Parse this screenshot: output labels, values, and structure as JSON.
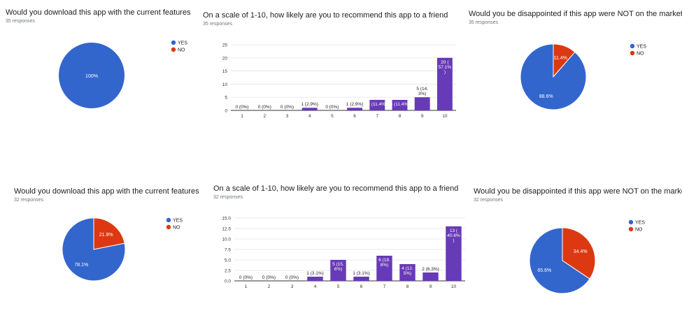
{
  "colors": {
    "yes": "#3366cc",
    "no": "#dc3912",
    "bar": "#673ab7",
    "grid": "#e0e0e0",
    "axis": "#333333"
  },
  "chart_data": [
    {
      "type": "pie",
      "title": "Would you download this app with the current features",
      "subtitle": "35 responses",
      "legend": [
        "YES",
        "NO"
      ],
      "legend_position": "right",
      "slices": [
        {
          "name": "YES",
          "value": 100,
          "label": "100%"
        },
        {
          "name": "NO",
          "value": 0,
          "label": ""
        }
      ]
    },
    {
      "type": "bar",
      "title": "On a scale of 1-10, how likely are you to recommend this app to a friend",
      "subtitle": "35 responses",
      "categories": [
        "1",
        "2",
        "3",
        "4",
        "5",
        "6",
        "7",
        "8",
        "9",
        "10"
      ],
      "values": [
        0,
        0,
        0,
        1,
        0,
        1,
        4,
        4,
        5,
        20
      ],
      "data_labels": [
        "0 (0%)",
        "0 (0%)",
        "0 (0%)",
        "1 (2.9%)",
        "0 (0%)",
        "1 (2.9%)",
        "4 (11.4%)",
        "4 (11.4%)",
        "5 (14.|3%)",
        "20 (|57.1%|)"
      ],
      "yticks": [
        "0",
        "5",
        "10",
        "15",
        "20",
        "25"
      ],
      "ylim": [
        0,
        25
      ],
      "grid": true
    },
    {
      "type": "pie",
      "title": "Would you be disappointed if this app were NOT on the market",
      "subtitle": "35 responses",
      "legend": [
        "YES",
        "NO"
      ],
      "legend_position": "right",
      "slices": [
        {
          "name": "YES",
          "value": 88.6,
          "label": "88.6%"
        },
        {
          "name": "NO",
          "value": 11.4,
          "label": "11.4%"
        }
      ]
    },
    {
      "type": "pie",
      "title": "Would you download this app with the current features",
      "subtitle": "32 responses",
      "legend": [
        "YES",
        "NO"
      ],
      "legend_position": "right",
      "slices": [
        {
          "name": "YES",
          "value": 78.1,
          "label": "78.1%"
        },
        {
          "name": "NO",
          "value": 21.9,
          "label": "21.9%"
        }
      ]
    },
    {
      "type": "bar",
      "title": "On a scale of 1-10, how likely are you to recommend this app to a friend",
      "subtitle": "32 responses",
      "categories": [
        "1",
        "2",
        "3",
        "4",
        "5",
        "6",
        "7",
        "8",
        "9",
        "10"
      ],
      "values": [
        0,
        0,
        0,
        1,
        5,
        1,
        6,
        4,
        2,
        13
      ],
      "data_labels": [
        "0 (0%)",
        "0 (0%)",
        "0 (0%)",
        "1 (3.1%)",
        "5 (15.|6%)",
        "1 (3.1%)",
        "6 (18.|8%)",
        "4 (12.|5%)",
        "2 (6.3%)",
        "13 (|40.6%|)"
      ],
      "yticks": [
        "0.0",
        "2.5",
        "5.0",
        "7.5",
        "10.0",
        "12.5",
        "15.0"
      ],
      "ylim": [
        0,
        15
      ],
      "grid": true
    },
    {
      "type": "pie",
      "title": "Would you be disappointed if this app were NOT on the market",
      "subtitle": "32 responses",
      "legend": [
        "YES",
        "NO"
      ],
      "legend_position": "right",
      "slices": [
        {
          "name": "YES",
          "value": 65.6,
          "label": "65.6%"
        },
        {
          "name": "NO",
          "value": 34.4,
          "label": "34.4%"
        }
      ]
    }
  ]
}
